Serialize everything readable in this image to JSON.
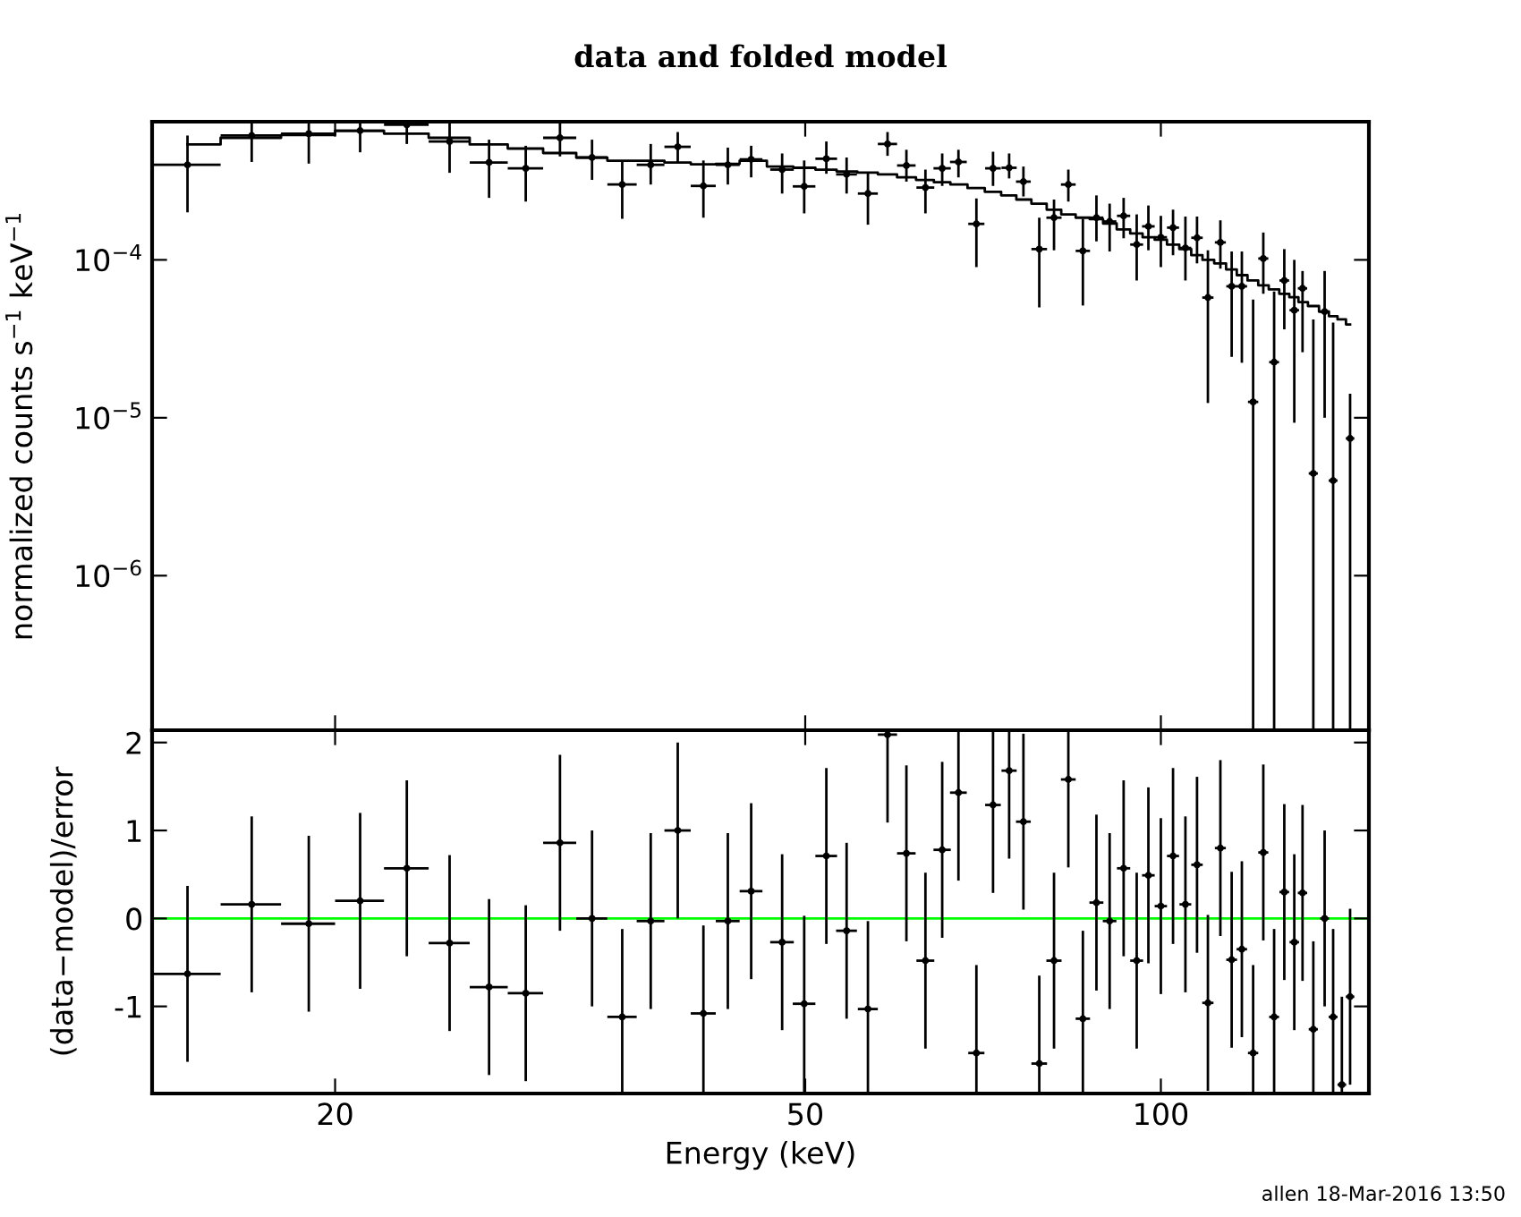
{
  "chart_data": [
    {
      "type": "scatter",
      "title": "data and folded model",
      "ylabel": "normalized counts s$^{−1}$ keV$^{−1}$",
      "log": "xy",
      "tick_labels": "y",
      "xlim": [
        14,
        150
      ],
      "ylim": [
        1.05e-07,
        0.00075
      ],
      "xticks": [
        20,
        50,
        100
      ],
      "yticks": [
        {
          "value": 1e-06,
          "label": "10$^{−6}$"
        },
        {
          "value": 1e-05,
          "label": "10$^{−5}$"
        },
        {
          "value": 0.0001,
          "label": "10$^{−4}$"
        }
      ],
      "x": [
        15,
        17,
        19,
        21,
        23,
        25,
        27,
        29,
        31,
        33,
        35,
        37,
        39,
        41,
        43,
        45,
        47.8,
        49.9,
        52.1,
        54.2,
        56.5,
        58.7,
        60.9,
        63.2,
        65.3,
        67.4,
        69.8,
        72.1,
        74.4,
        76.5,
        78.9,
        81.2,
        83.5,
        85.9,
        88.2,
        90.5,
        93.0,
        95.4,
        97.6,
        100.0,
        102.4,
        104.9,
        107.3,
        109.6,
        112.3,
        114.8,
        117.1,
        119.7,
        122.1,
        124.7,
        127.2,
        129.7,
        131.8,
        134.6,
        137.6,
        139.9,
        142.3,
        144.6
      ],
      "series": [
        {
          "color": "#000000",
          "xerrors": [
            1,
            1,
            1,
            1,
            1,
            1,
            1,
            1,
            1,
            1,
            1,
            1,
            1,
            1,
            1,
            1,
            1.1,
            1.1,
            1.1,
            1.1,
            1.1,
            1.1,
            1.1,
            1.1,
            1.1,
            1.1,
            1.1,
            1.1,
            1.1,
            1.1,
            1.2,
            1.2,
            1.2,
            1.2,
            1.2,
            1.2,
            1.2,
            1.2,
            1.2,
            1.2,
            1.2,
            1.2,
            1.2,
            1.2,
            1.2,
            1.2,
            1.2,
            1.2,
            1.2,
            1.2,
            1.2,
            1.2,
            1.2,
            1.2,
            1.2,
            1.2,
            null,
            1.2
          ],
          "values": [
            0.0004,
            0.000613,
            0.00063,
            0.000658,
            0.000717,
            0.000562,
            0.000414,
            0.00038,
            0.000593,
            0.000445,
            0.0003,
            0.0004,
            0.00052,
            0.000294,
            0.0004,
            0.000433,
            0.000373,
            0.000292,
            0.000437,
            0.000348,
            0.000263,
            0.000542,
            0.000396,
            0.000287,
            0.00038,
            0.000417,
            0.000169,
            0.00038,
            0.000383,
            0.000313,
            0.000117,
            0.000185,
            0.0003,
            0.000114,
            0.000185,
            0.000175,
            0.00019,
            0.000125,
            0.000163,
            0.000139,
            0.00016,
            0.000119,
            0.000138,
            5.77e-05,
            0.000129,
            6.8e-05,
            6.8e-05,
            1.26e-05,
            0.000102,
            2.25e-05,
            7.4e-05,
            4.8e-05,
            6.6e-05,
            4.44e-06,
            4.7e-05,
            4e-06,
            null,
            7.4e-06
          ],
          "errors": [
            [
              0.0002,
              0.000613
            ],
            [
              0.000417,
              0.00075
            ],
            [
              0.000407,
              0.00075
            ],
            [
              0.00048,
              0.00075
            ],
            [
              0.000542,
              0.00075
            ],
            [
              0.000356,
              0.00075
            ],
            [
              0.000247,
              0.000577
            ],
            [
              0.000234,
              0.000528
            ],
            [
              0.000452,
              0.00075
            ],
            [
              0.000321,
              0.000577
            ],
            [
              0.000182,
              0.000426
            ],
            [
              0.0003,
              0.000542
            ],
            [
              0.000407,
              0.000645
            ],
            [
              0.000185,
              0.000426
            ],
            [
              0.0003,
              0.000514
            ],
            [
              0.000333,
              0.000528
            ],
            [
              0.000263,
              0.000472
            ],
            [
              0.000197,
              0.000426
            ],
            [
              0.000351,
              0.000562
            ],
            [
              0.000263,
              0.000445
            ],
            [
              0.000167,
              0.000356
            ],
            [
              0.000456,
              0.000645
            ],
            [
              0.000313,
              0.000498
            ],
            [
              0.000197,
              0.000373
            ],
            [
              0.000294,
              0.000472
            ],
            [
              0.000333,
              0.000498
            ],
            [
              9e-05,
              0.000245
            ],
            [
              0.000294,
              0.000484
            ],
            [
              0.000328,
              0.000472
            ],
            [
              0.000252,
              0.00039
            ],
            [
              5e-05,
              0.000185
            ],
            [
              0.000115,
              0.000241
            ],
            [
              0.000234,
              0.000373
            ],
            [
              5.14e-05,
              0.000182
            ],
            [
              0.000131,
              0.000256
            ],
            [
              0.000113,
              0.000227
            ],
            [
              0.000137,
              0.000247
            ],
            [
              7.4e-05,
              0.000194
            ],
            [
              0.000115,
              0.000221
            ],
            [
              9e-05,
              0.00019
            ],
            [
              0.000107,
              0.000208
            ],
            [
              7.4e-05,
              0.000188
            ],
            [
              9.5e-05,
              0.000188
            ],
            [
              1.24e-05,
              0.000115
            ],
            [
              8.8e-05,
              0.000178
            ],
            [
              2.43e-05,
              0.000113
            ],
            [
              2.23e-05,
              0.000113
            ],
            [
              1.05e-07,
              5.6e-05
            ],
            [
              6.1e-05,
              0.000149
            ],
            [
              1.05e-07,
              6.3e-05
            ],
            [
              3.63e-05,
              0.000117
            ],
            [
              9.3e-06,
              0.0001
            ],
            [
              2.6e-05,
              8.5e-05
            ],
            [
              1.05e-07,
              4.2e-05
            ],
            [
              1e-05,
              8.5e-05
            ],
            [
              1.05e-07,
              4e-05
            ],
            null,
            [
              1.05e-07,
              1.42e-05
            ]
          ]
        },
        {
          "type": "step",
          "color": "#000000",
          "values": [
            0.000538,
            0.000593,
            0.000618,
            0.000658,
            0.00063,
            0.000593,
            0.000538,
            0.000507,
            0.000475,
            0.000444,
            0.000425,
            0.000425,
            0.000414,
            0.000403,
            0.000406,
            0.000425,
            0.00039,
            0.000383,
            0.000373,
            0.000363,
            0.000357,
            0.000348,
            0.000333,
            0.000321,
            0.00031,
            0.0003,
            0.000285,
            0.00027,
            0.000256,
            0.000241,
            0.000227,
            0.000208,
            0.000194,
            0.000185,
            0.000181,
            0.00017,
            0.000156,
            0.000147,
            0.000139,
            0.000134,
            0.000125,
            0.000117,
            0.000107,
            0.0001,
            9.5e-05,
            8.7e-05,
            8e-05,
            7.4e-05,
            6.9e-05,
            6.5e-05,
            6.1e-05,
            5.8e-05,
            5.4e-05,
            5.1e-05,
            4.7e-05,
            4.4e-05,
            4.2e-05,
            3.9e-05
          ]
        }
      ]
    },
    {
      "type": "scatter",
      "xlabel": "Energy (keV)",
      "ylabel": "(data−model)/error",
      "log": "x",
      "xlim": [
        14,
        150
      ],
      "ylim": [
        -1.99,
        2.14
      ],
      "xticks": [
        20,
        50,
        100
      ],
      "yticks": [
        -1,
        0,
        1,
        2
      ],
      "ref_lines": [
        {
          "axis": "y",
          "value": 0,
          "color": "#00ff00"
        }
      ],
      "annotations": [
        "allen 18-Mar-2016 13:50"
      ],
      "x": [
        15,
        17,
        19,
        21,
        23,
        25,
        27,
        29,
        31,
        33,
        35,
        37,
        39,
        41,
        43,
        45,
        47.8,
        49.9,
        52.1,
        54.2,
        56.5,
        58.7,
        60.9,
        63.2,
        65.3,
        67.4,
        69.8,
        72.1,
        74.4,
        76.5,
        78.9,
        81.2,
        83.5,
        85.9,
        88.2,
        90.5,
        93.0,
        95.4,
        97.6,
        100.0,
        102.4,
        104.9,
        107.3,
        109.6,
        112.3,
        114.8,
        117.1,
        119.7,
        122.1,
        124.7,
        127.2,
        129.7,
        131.8,
        134.6,
        137.6,
        139.9,
        142.3,
        144.6
      ],
      "series": [
        {
          "color": "#000000",
          "xerrors": [
            1,
            1,
            1,
            1,
            1,
            1,
            1,
            1,
            1,
            1,
            1,
            1,
            1,
            1,
            1,
            1,
            1.1,
            1.1,
            1.1,
            1.1,
            1.1,
            1.1,
            1.1,
            1.1,
            1.1,
            1.1,
            1.1,
            1.1,
            1.1,
            1.1,
            1.2,
            1.2,
            1.2,
            1.2,
            1.2,
            1.2,
            1.2,
            1.2,
            1.2,
            1.2,
            1.2,
            1.2,
            1.2,
            1.2,
            1.2,
            1.2,
            1.2,
            1.2,
            1.2,
            1.2,
            1.2,
            1.2,
            1.2,
            1.2,
            1.2,
            1.2,
            1.2,
            1.2
          ],
          "values": [
            -0.63,
            0.16,
            -0.06,
            0.2,
            0.57,
            -0.28,
            -0.78,
            -0.85,
            0.86,
            0.0,
            -1.12,
            -0.03,
            1.0,
            -1.08,
            -0.03,
            0.31,
            -0.27,
            -0.97,
            0.71,
            -0.14,
            -1.03,
            2.09,
            0.74,
            -0.48,
            0.78,
            1.43,
            -1.53,
            1.29,
            1.68,
            1.1,
            -1.65,
            -0.48,
            1.58,
            -1.14,
            0.18,
            -0.03,
            0.57,
            -0.48,
            0.49,
            0.14,
            0.71,
            0.16,
            0.61,
            -0.96,
            0.8,
            -0.47,
            -0.35,
            -1.53,
            0.75,
            -1.12,
            0.3,
            -0.27,
            0.29,
            -1.26,
            0.0,
            -1.12,
            -1.89,
            -0.89
          ],
          "errors": [
            [
              -1.63,
              0.37
            ],
            [
              -0.84,
              1.16
            ],
            [
              -1.06,
              0.94
            ],
            [
              -0.8,
              1.2
            ],
            [
              -0.43,
              1.57
            ],
            [
              -1.28,
              0.72
            ],
            [
              -1.78,
              0.22
            ],
            [
              -1.85,
              0.15
            ],
            [
              -0.14,
              1.86
            ],
            [
              -1,
              1
            ],
            [
              -1.99,
              -0.12
            ],
            [
              -1.03,
              0.97
            ],
            [
              0,
              2
            ],
            [
              -1.99,
              -0.08
            ],
            [
              -1.03,
              0.97
            ],
            [
              -0.69,
              1.31
            ],
            [
              -1.27,
              0.73
            ],
            [
              -1.97,
              0.03
            ],
            [
              -0.29,
              1.71
            ],
            [
              -1.14,
              0.86
            ],
            [
              -1.99,
              -0.03
            ],
            [
              1.09,
              2.14
            ],
            [
              -0.26,
              1.74
            ],
            [
              -1.48,
              0.52
            ],
            [
              -0.22,
              1.78
            ],
            [
              0.43,
              2.14
            ],
            [
              -1.99,
              -0.53
            ],
            [
              0.29,
              2.14
            ],
            [
              0.68,
              2.14
            ],
            [
              0.1,
              2.1
            ],
            [
              -1.99,
              -0.65
            ],
            [
              -1.48,
              0.52
            ],
            [
              0.58,
              2.14
            ],
            [
              -1.99,
              -0.14
            ],
            [
              -0.82,
              1.18
            ],
            [
              -1.03,
              0.97
            ],
            [
              -0.43,
              1.57
            ],
            [
              -1.48,
              0.52
            ],
            [
              -0.51,
              1.49
            ],
            [
              -0.86,
              1.14
            ],
            [
              -0.29,
              1.71
            ],
            [
              -0.84,
              1.16
            ],
            [
              -0.39,
              1.61
            ],
            [
              -1.96,
              0.04
            ],
            [
              -0.2,
              1.8
            ],
            [
              -1.47,
              0.53
            ],
            [
              -1.35,
              0.65
            ],
            [
              -1.99,
              -0.53
            ],
            [
              -0.25,
              1.75
            ],
            [
              -1.99,
              -0.12
            ],
            [
              -0.7,
              1.3
            ],
            [
              -1.27,
              0.73
            ],
            [
              -0.71,
              1.29
            ],
            [
              -1.99,
              -0.26
            ],
            [
              -1,
              1
            ],
            [
              -1.99,
              -0.12
            ],
            [
              -1.99,
              -0.89
            ],
            [
              -1.89,
              0.11
            ]
          ]
        }
      ]
    }
  ]
}
